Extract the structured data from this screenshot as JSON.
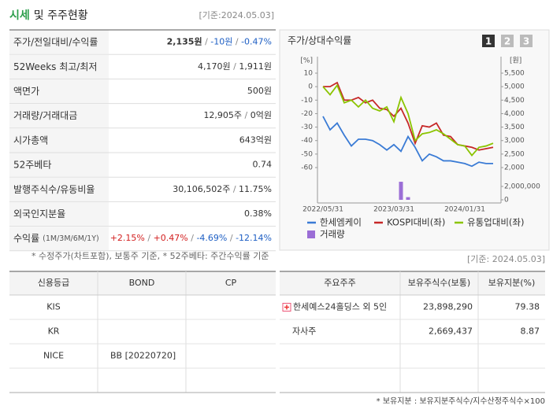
{
  "header": {
    "title_main": "시세",
    "title_sub": "및 주주현황",
    "date": "[기준:2024.05.03]"
  },
  "quote": {
    "separator": " / ",
    "rows": [
      {
        "label": "주가/전일대비/수익률",
        "values": [
          "2,135원",
          "-10원",
          "-0.47%"
        ]
      },
      {
        "label": "52Weeks 최고/최저",
        "values": [
          "4,170원",
          "1,911원"
        ]
      },
      {
        "label": "액면가",
        "values": [
          "500원"
        ]
      },
      {
        "label": "거래량/거래대금",
        "values": [
          "12,905주",
          "0억원"
        ]
      },
      {
        "label": "시가총액",
        "values": [
          "643억원"
        ]
      },
      {
        "label": "52주베타",
        "values": [
          "0.74"
        ]
      },
      {
        "label": "발행주식수/유동비율",
        "values": [
          "30,106,502주",
          "11.75%"
        ]
      },
      {
        "label": "외국인지분율",
        "values": [
          "0.38%"
        ]
      },
      {
        "label": "수익률",
        "note": "(1M/3M/6M/1Y)",
        "values": [
          "+2.15%",
          "+0.47%",
          "-4.69%",
          "-12.14%"
        ]
      }
    ],
    "footnote": "* 수정주가(차트포함), 보통주 기준, * 52주베타: 주간수익률 기준"
  },
  "chart_data": {
    "type": "line",
    "title": "주가/상대수익률",
    "buttons": [
      "1",
      "2",
      "3"
    ],
    "y_unit": "[%]",
    "y2_unit": "[원]",
    "categories": [
      "2022/05/31",
      null,
      null,
      null,
      null,
      null,
      null,
      null,
      null,
      null,
      "2023/03/31",
      null,
      null,
      null,
      null,
      null,
      null,
      null,
      null,
      null,
      "2024/01/31",
      null,
      null,
      null,
      null
    ],
    "ylim": [
      -60,
      10
    ],
    "yticks": [
      10,
      0,
      -10,
      -20,
      -30,
      -40,
      -50,
      -60
    ],
    "y2lim": [
      2000,
      5500
    ],
    "y2ticks": [
      {
        "value": 5500,
        "label": "5,500"
      },
      {
        "value": 5000,
        "label": "5,000"
      },
      {
        "value": 4500,
        "label": "4,500"
      },
      {
        "value": 4000,
        "label": "4,000"
      },
      {
        "value": 3500,
        "label": "3,500"
      },
      {
        "value": 3000,
        "label": "3,000"
      },
      {
        "value": 2500,
        "label": "2,500"
      },
      {
        "value": 2000,
        "label": "2,000"
      }
    ],
    "volume_lim": [
      0,
      2000000
    ],
    "volume_ticks": [
      {
        "value": 2000000,
        "label": "2,000,000"
      },
      0
    ],
    "series": [
      {
        "name": "한세엠케이",
        "color": "#3a7bd5",
        "values": [
          -22,
          -32,
          -27,
          -36,
          -44,
          -39,
          -39,
          -40,
          -43,
          -47,
          -43,
          -48,
          -37,
          -45,
          -55,
          -50,
          -52,
          -55,
          -55,
          -56,
          -57,
          -59,
          -56,
          -57,
          -57
        ]
      },
      {
        "name": "KOSPI대비(좌)",
        "color": "#c62828",
        "values": [
          0,
          0,
          3,
          -10,
          -10,
          -8,
          -12,
          -10,
          -16,
          -17,
          -22,
          -16,
          -27,
          -42,
          -29,
          -30,
          -27,
          -36,
          -37,
          -43,
          -44,
          -45,
          -47,
          -46,
          -45
        ]
      },
      {
        "name": "유통업대비(좌)",
        "color": "#8bc400",
        "values": [
          0,
          -6,
          1,
          -12,
          -10,
          -15,
          -10,
          -16,
          -18,
          -15,
          -26,
          -8,
          -20,
          -40,
          -35,
          -34,
          -32,
          -35,
          -39,
          -43,
          -44,
          -51,
          -45,
          -44,
          -42
        ]
      },
      {
        "name": "거래량",
        "color": "#9b6ed6",
        "axis": "volume",
        "values": [
          0,
          0,
          0,
          0,
          0,
          0,
          0,
          0,
          0,
          0,
          0,
          2700000,
          400000,
          0,
          0,
          0,
          0,
          0,
          0,
          0,
          0,
          0,
          0,
          0,
          0
        ]
      }
    ]
  },
  "date2": "[기준: 2024.05.03]",
  "credit": {
    "header": [
      "신용등급",
      "BOND",
      "CP"
    ],
    "rows": [
      [
        "KIS",
        "",
        ""
      ],
      [
        "KR",
        "",
        ""
      ],
      [
        "NICE",
        "BB [20220720]",
        ""
      ]
    ]
  },
  "holders": {
    "header": [
      "주요주주",
      "보유주식수(보통)",
      "보유지분(%)"
    ],
    "rows": [
      [
        "한세예스24홀딩스 외 5인",
        "23,898,290",
        "79.38"
      ],
      [
        "자사주",
        "2,669,437",
        "8.87"
      ]
    ],
    "footnote": "* 보유지분 : 보유지분주식수/지수산정주식수×100"
  }
}
